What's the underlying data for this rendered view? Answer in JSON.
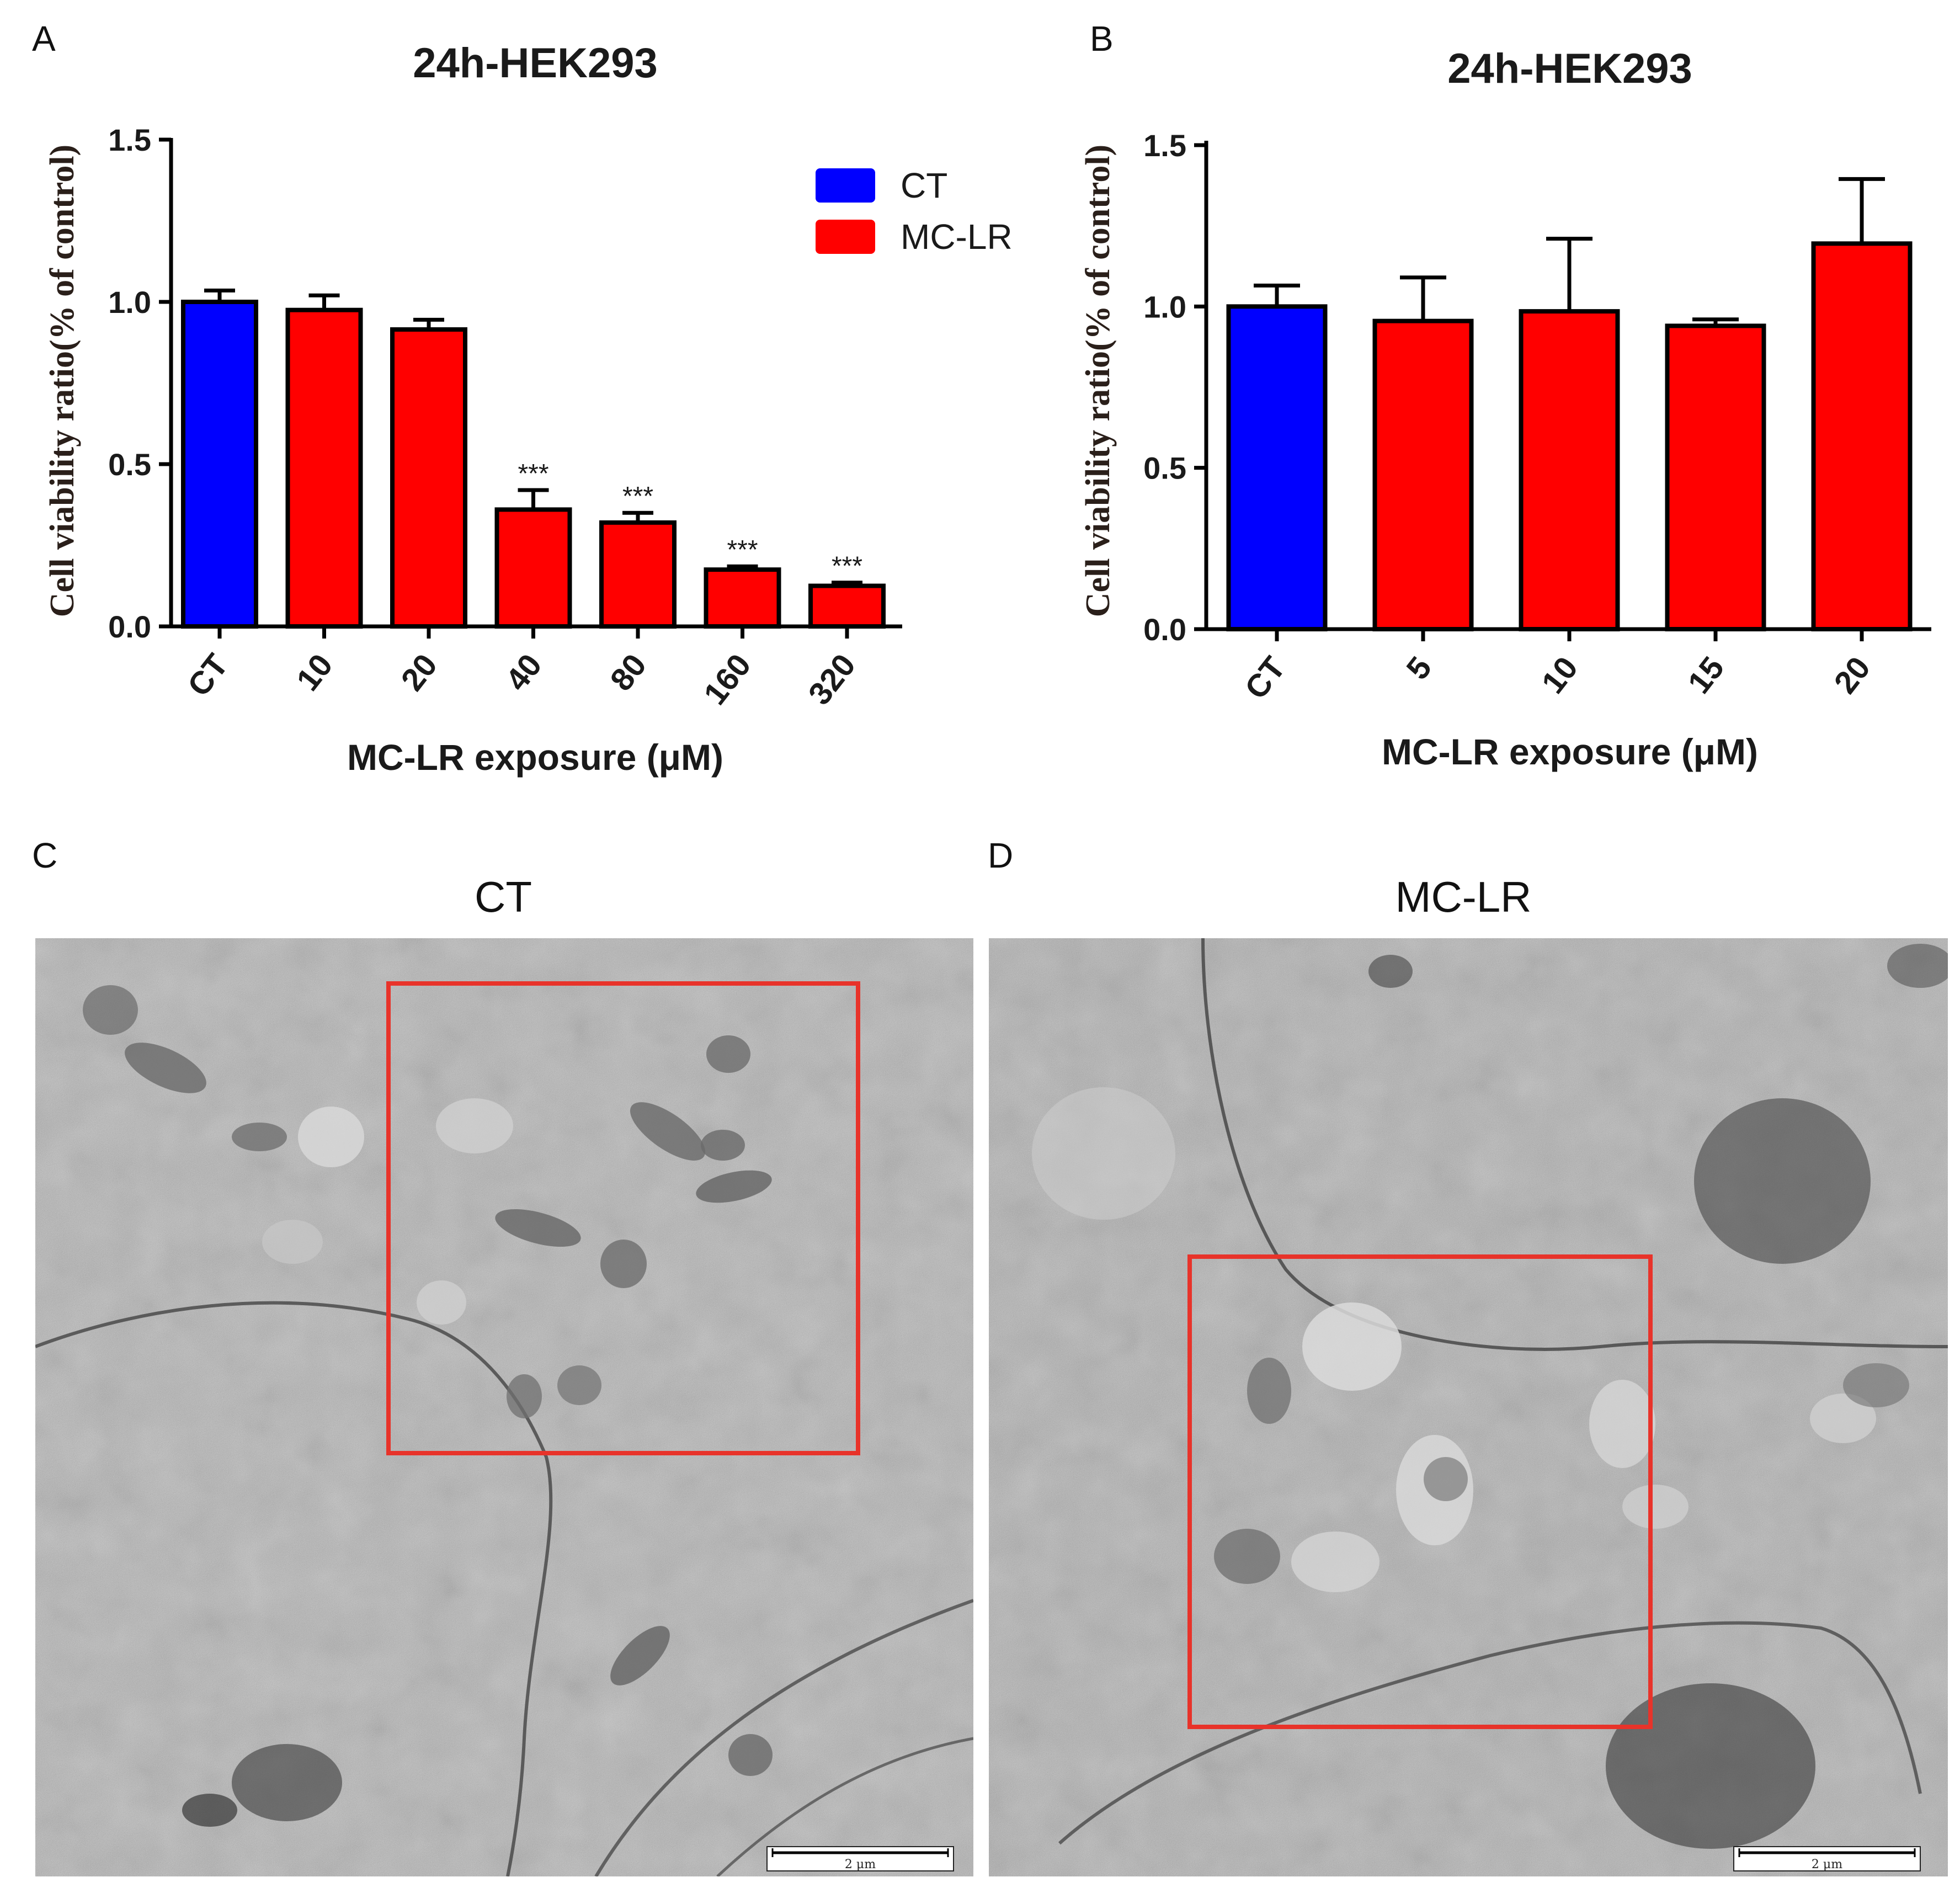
{
  "colors": {
    "ct": "#0000ff",
    "mclr": "#ff0000",
    "highlight": "#e8332a",
    "axis": "#000000"
  },
  "chart_data": [
    {
      "panel": "A",
      "type": "bar",
      "title": "24h-HEK293",
      "xlabel": "MC-LR exposure (μM)",
      "ylabel": "Cell viability ratio(% of control)",
      "categories": [
        "CT",
        "10",
        "20",
        "40",
        "80",
        "160",
        "320"
      ],
      "values": [
        1.0,
        0.975,
        0.915,
        0.36,
        0.32,
        0.175,
        0.125
      ],
      "errors": [
        0.035,
        0.045,
        0.03,
        0.06,
        0.03,
        0.01,
        0.01
      ],
      "groups": [
        "CT",
        "MC-LR",
        "MC-LR",
        "MC-LR",
        "MC-LR",
        "MC-LR",
        "MC-LR"
      ],
      "significance": [
        "",
        "",
        "",
        "***",
        "***",
        "***",
        "***"
      ],
      "ylim": [
        0,
        1.5
      ],
      "yticks": [
        "0.0",
        "0.5",
        "1.0",
        "1.5"
      ],
      "legend": [
        {
          "label": "CT",
          "group": "CT"
        },
        {
          "label": "MC-LR",
          "group": "MC-LR"
        }
      ],
      "legend_position": "top-right",
      "grid": false
    },
    {
      "panel": "B",
      "type": "bar",
      "title": "24h-HEK293",
      "xlabel": "MC-LR exposure (μM)",
      "ylabel": "Cell viability ratio(% of control)",
      "categories": [
        "CT",
        "5",
        "10",
        "15",
        "20"
      ],
      "values": [
        1.0,
        0.955,
        0.985,
        0.94,
        1.195
      ],
      "errors": [
        0.065,
        0.135,
        0.225,
        0.02,
        0.2
      ],
      "groups": [
        "CT",
        "MC-LR",
        "MC-LR",
        "MC-LR",
        "MC-LR"
      ],
      "significance": [
        "",
        "",
        "",
        "",
        ""
      ],
      "ylim": [
        0,
        1.5
      ],
      "yticks": [
        "0.0",
        "0.5",
        "1.0",
        "1.5"
      ],
      "grid": false
    }
  ],
  "micrographs": {
    "c": {
      "letter": "C",
      "title": "CT",
      "scale_label": "2 μm"
    },
    "d": {
      "letter": "D",
      "title": "MC-LR",
      "scale_label": "2 μm"
    }
  }
}
